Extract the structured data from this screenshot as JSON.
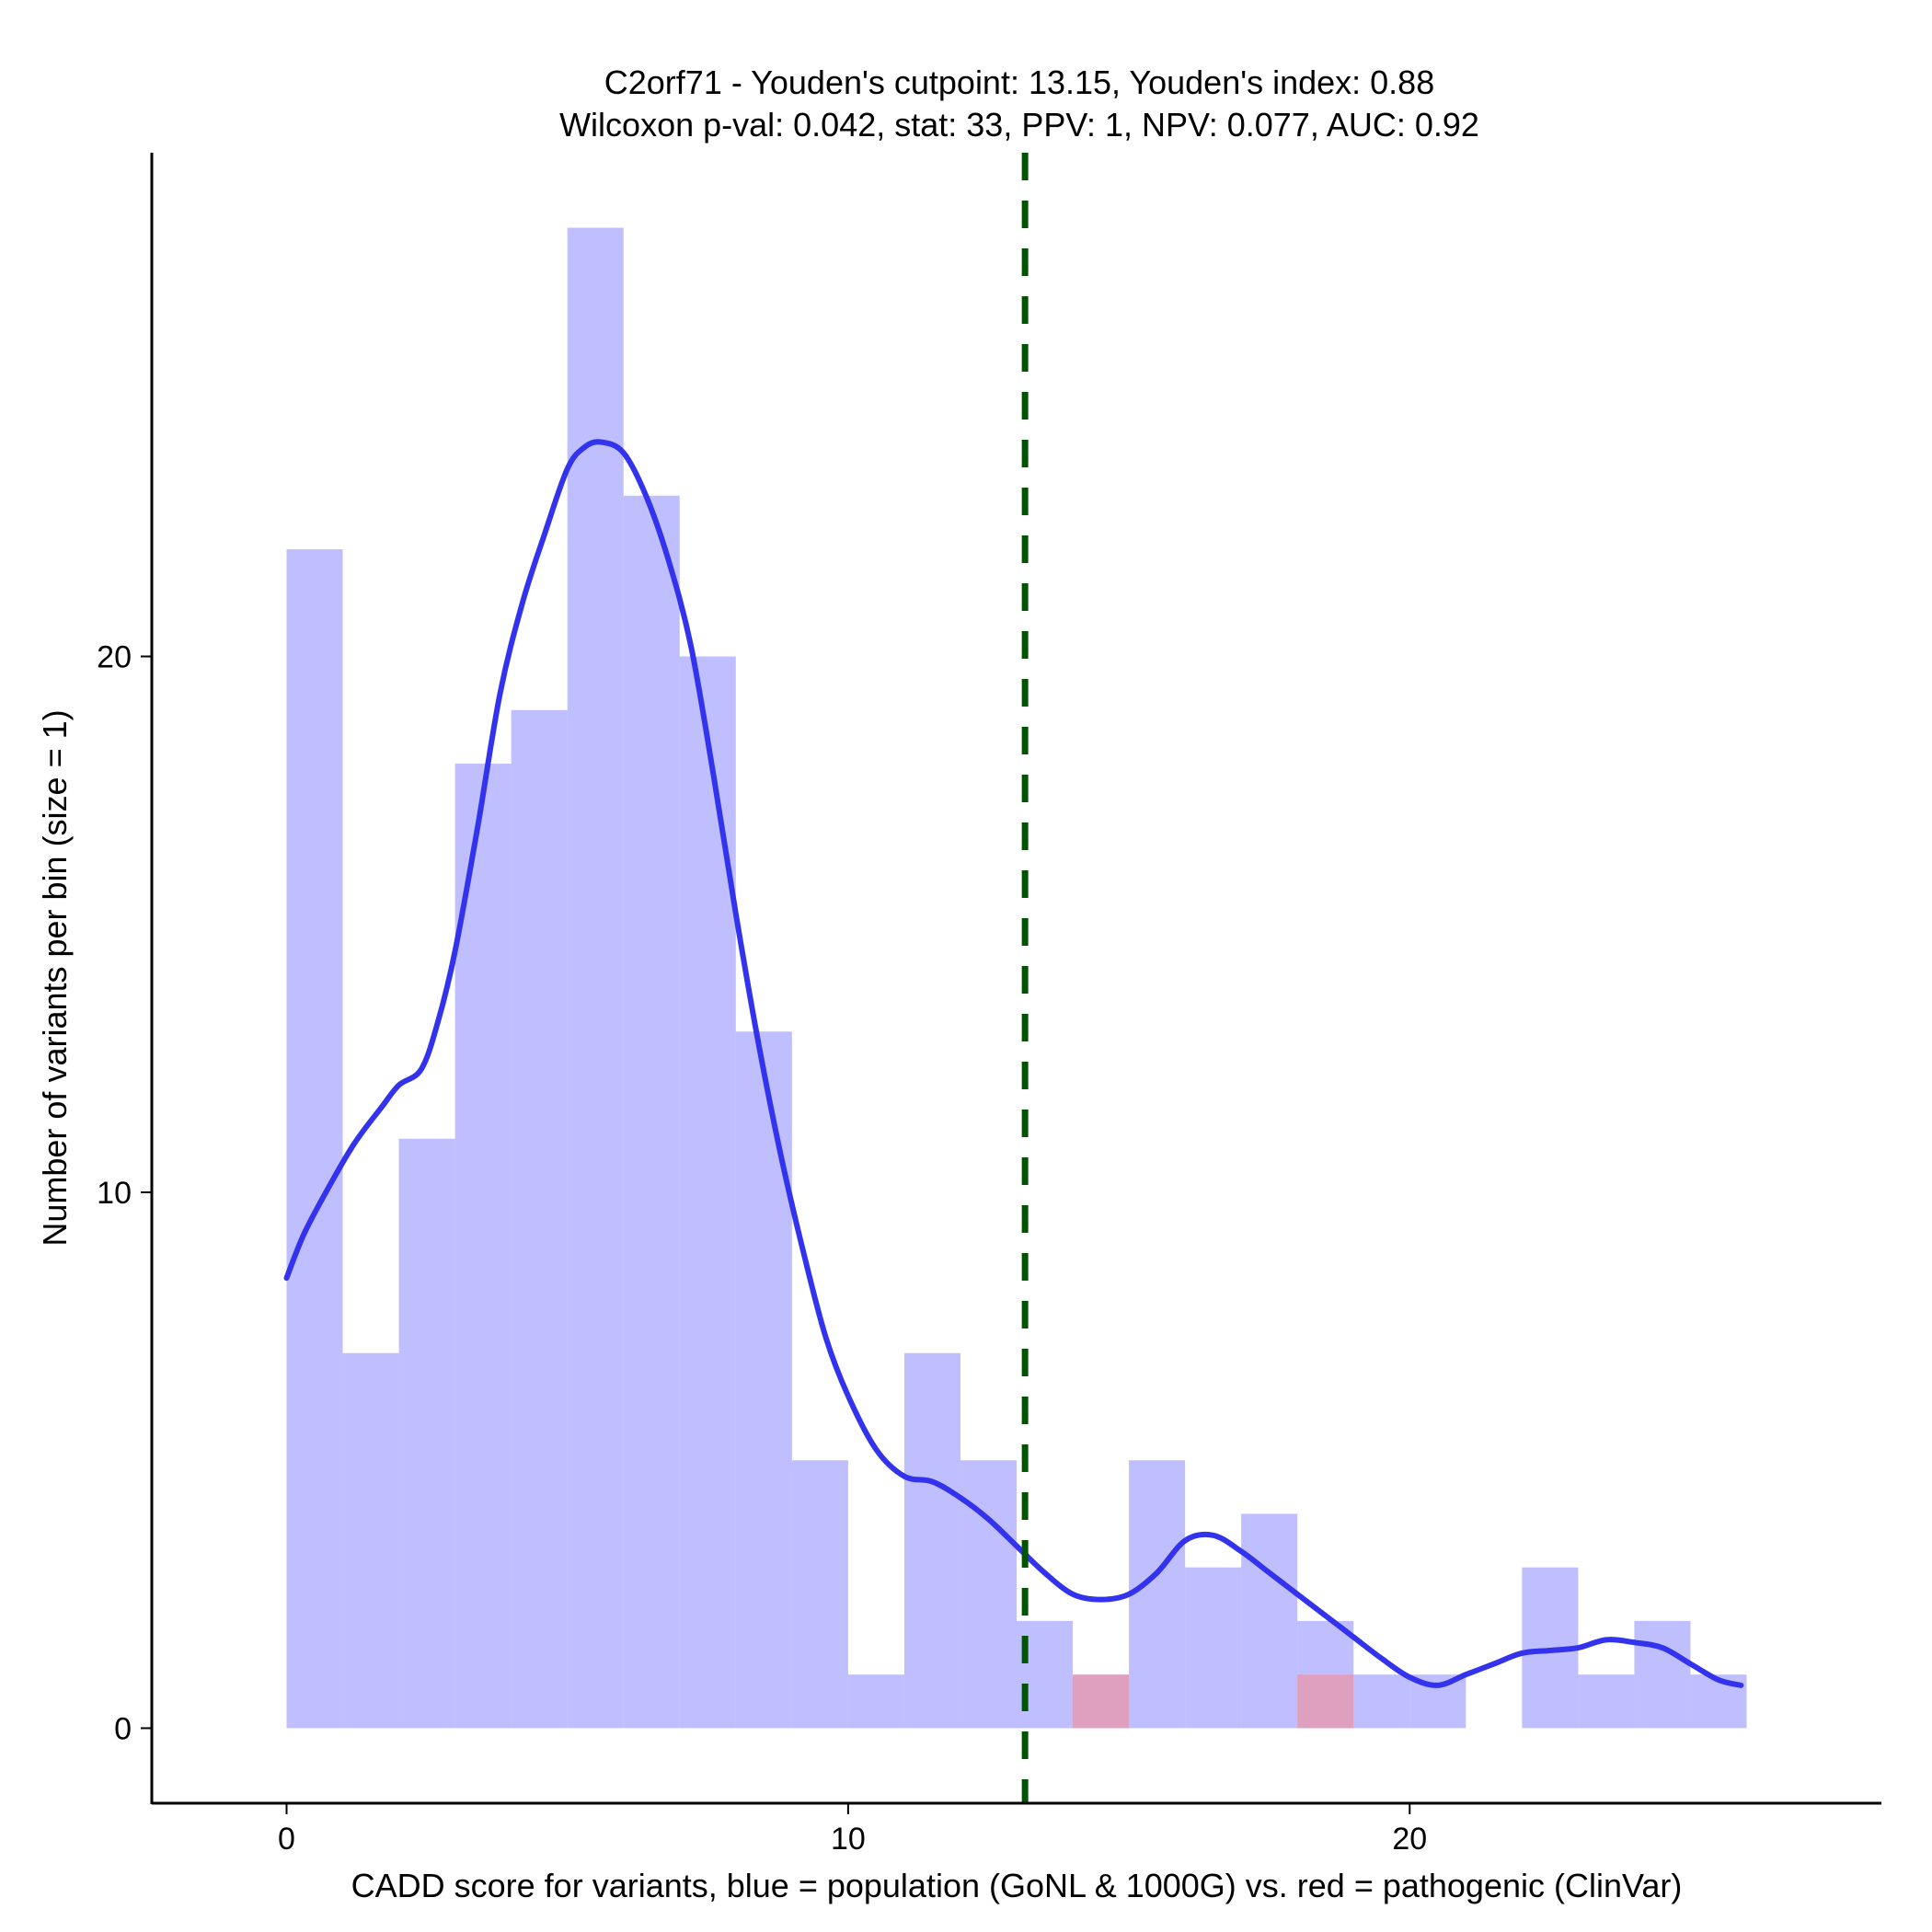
{
  "chart_data": {
    "type": "bar",
    "title": "C2orf71 - Youden's cutpoint: 13.15, Youden's index: 0.88",
    "subtitle": "Wilcoxon p-val: 0.042, stat: 33, PPV: 1, NPV: 0.077, AUC: 0.92",
    "xlabel": "CADD score for variants, blue = population (GoNL & 1000G) vs. red = pathogenic (ClinVar)",
    "ylabel": "Number of variants per bin (size = 1)",
    "xlim": [
      -2.4,
      28.4
    ],
    "ylim": [
      -1.4,
      29.4
    ],
    "x_ticks": [
      0,
      10,
      20
    ],
    "y_ticks": [
      0,
      10,
      20
    ],
    "bin_width": 1,
    "series": [
      {
        "name": "population (GoNL & 1000G)",
        "color": "#8080ff",
        "opacity": 0.5,
        "bins": [
          {
            "x": 0,
            "count": 22
          },
          {
            "x": 1,
            "count": 7
          },
          {
            "x": 2,
            "count": 11
          },
          {
            "x": 3,
            "count": 18
          },
          {
            "x": 4,
            "count": 19
          },
          {
            "x": 5,
            "count": 28
          },
          {
            "x": 6,
            "count": 23
          },
          {
            "x": 7,
            "count": 20
          },
          {
            "x": 8,
            "count": 13
          },
          {
            "x": 9,
            "count": 5
          },
          {
            "x": 10,
            "count": 1
          },
          {
            "x": 11,
            "count": 7
          },
          {
            "x": 12,
            "count": 5
          },
          {
            "x": 13,
            "count": 2
          },
          {
            "x": 14,
            "count": 1
          },
          {
            "x": 15,
            "count": 5
          },
          {
            "x": 16,
            "count": 3
          },
          {
            "x": 17,
            "count": 4
          },
          {
            "x": 18,
            "count": 2
          },
          {
            "x": 19,
            "count": 1
          },
          {
            "x": 20,
            "count": 1
          },
          {
            "x": 22,
            "count": 3
          },
          {
            "x": 23,
            "count": 1
          },
          {
            "x": 24,
            "count": 2
          },
          {
            "x": 25,
            "count": 1
          }
        ]
      },
      {
        "name": "pathogenic (ClinVar)",
        "color": "#ff8080",
        "opacity": 0.5,
        "bins": [
          {
            "x": 14,
            "count": 1
          },
          {
            "x": 18,
            "count": 1
          }
        ]
      }
    ],
    "density_curve": {
      "name": "population density",
      "color": "#3333ee",
      "points": [
        [
          0,
          8.4
        ],
        [
          0.3,
          9.2
        ],
        [
          0.7,
          10.0
        ],
        [
          1.2,
          10.9
        ],
        [
          1.7,
          11.6
        ],
        [
          2.0,
          12.0
        ],
        [
          2.4,
          12.3
        ],
        [
          2.7,
          13.2
        ],
        [
          3.0,
          14.5
        ],
        [
          3.4,
          16.8
        ],
        [
          3.8,
          19.3
        ],
        [
          4.2,
          21.0
        ],
        [
          4.6,
          22.3
        ],
        [
          5.0,
          23.5
        ],
        [
          5.3,
          23.9
        ],
        [
          5.6,
          24.0
        ],
        [
          6.0,
          23.8
        ],
        [
          6.4,
          23.0
        ],
        [
          6.8,
          21.8
        ],
        [
          7.2,
          20.2
        ],
        [
          7.6,
          17.8
        ],
        [
          8.0,
          15.2
        ],
        [
          8.4,
          12.8
        ],
        [
          8.8,
          10.7
        ],
        [
          9.2,
          8.9
        ],
        [
          9.6,
          7.3
        ],
        [
          10.0,
          6.2
        ],
        [
          10.5,
          5.2
        ],
        [
          11.0,
          4.7
        ],
        [
          11.5,
          4.6
        ],
        [
          12.0,
          4.3
        ],
        [
          12.5,
          3.9
        ],
        [
          13.0,
          3.4
        ],
        [
          13.5,
          2.9
        ],
        [
          14.0,
          2.5
        ],
        [
          14.5,
          2.4
        ],
        [
          15.0,
          2.5
        ],
        [
          15.5,
          2.9
        ],
        [
          16.0,
          3.5
        ],
        [
          16.5,
          3.6
        ],
        [
          17.0,
          3.3
        ],
        [
          17.5,
          2.9
        ],
        [
          18.0,
          2.5
        ],
        [
          18.5,
          2.1
        ],
        [
          19.0,
          1.7
        ],
        [
          19.5,
          1.3
        ],
        [
          20.0,
          0.95
        ],
        [
          20.5,
          0.8
        ],
        [
          21.0,
          1.0
        ],
        [
          21.5,
          1.2
        ],
        [
          22.0,
          1.4
        ],
        [
          22.5,
          1.45
        ],
        [
          23.0,
          1.5
        ],
        [
          23.5,
          1.65
        ],
        [
          24.0,
          1.6
        ],
        [
          24.5,
          1.5
        ],
        [
          25.0,
          1.2
        ],
        [
          25.5,
          0.9
        ],
        [
          25.9,
          0.8
        ]
      ]
    },
    "cutpoint": {
      "x": 13.15,
      "color": "#005500",
      "style": "dashed"
    }
  }
}
